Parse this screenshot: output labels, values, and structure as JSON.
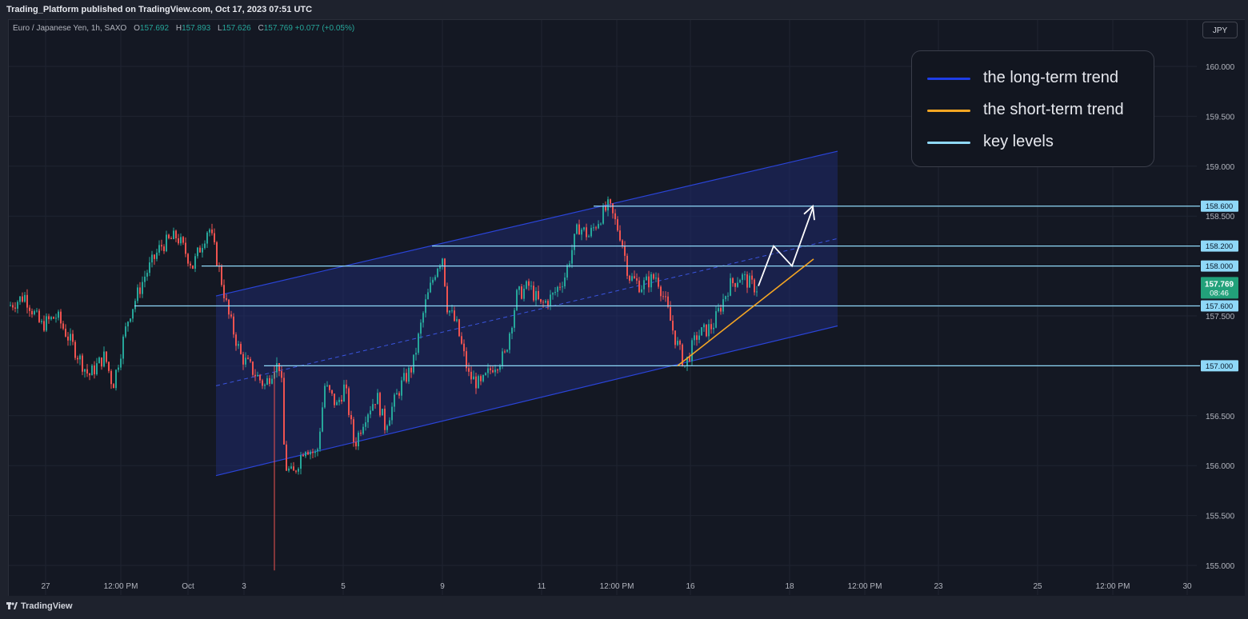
{
  "header": {
    "published": "Trading_Platform published on TradingView.com, Oct 17, 2023 07:51 UTC"
  },
  "symbol": {
    "name": "Euro / Japanese Yen, 1h, SAXO",
    "open_label": "O",
    "open": "157.692",
    "high_label": "H",
    "high": "157.893",
    "low_label": "L",
    "low": "157.626",
    "close_label": "C",
    "close": "157.769",
    "change": "+0.077 (+0.05%)"
  },
  "currency_button": "JPY",
  "legend": [
    {
      "label": "the long-term trend",
      "color": "#1e3de6"
    },
    {
      "label": "the short-term trend",
      "color": "#f5a623"
    },
    {
      "label": "key levels",
      "color": "#8fd8f8"
    }
  ],
  "footer": {
    "brand": "TradingView"
  },
  "chart_data": {
    "type": "candlestick",
    "instrument": "Euro / Japanese Yen",
    "interval": "1h",
    "ylim": [
      154.9,
      160.5
    ],
    "y_ticks": [
      "160.000",
      "159.500",
      "159.000",
      "158.500",
      "157.500",
      "157.000",
      "156.500",
      "156.000",
      "155.500",
      "155.000"
    ],
    "x_ticks": [
      "27",
      "12:00 PM",
      "Oct",
      "3",
      "5",
      "9",
      "11",
      "12:00 PM",
      "16",
      "18",
      "12:00 PM",
      "23",
      "25",
      "12:00 PM",
      "30"
    ],
    "key_levels": [
      "158.600",
      "158.200",
      "158.000",
      "157.600",
      "157.000"
    ],
    "last_price": {
      "value": "157.769",
      "countdown": "08:46"
    },
    "path": [
      [
        0,
        157.6
      ],
      [
        20,
        157.7
      ],
      [
        40,
        157.4
      ],
      [
        60,
        157.5
      ],
      [
        80,
        157.2
      ],
      [
        100,
        156.9
      ],
      [
        120,
        157.1
      ],
      [
        130,
        156.8
      ],
      [
        150,
        157.5
      ],
      [
        170,
        157.9
      ],
      [
        190,
        158.2
      ],
      [
        210,
        158.3
      ],
      [
        230,
        158.0
      ],
      [
        250,
        158.4
      ],
      [
        262,
        158.0
      ],
      [
        275,
        157.5
      ],
      [
        290,
        157.1
      ],
      [
        300,
        157.0
      ],
      [
        320,
        156.8
      ],
      [
        332,
        157.0
      ],
      [
        340,
        157.0
      ],
      [
        345,
        156.0
      ],
      [
        355,
        155.9
      ],
      [
        370,
        156.2
      ],
      [
        385,
        156.1
      ],
      [
        395,
        156.8
      ],
      [
        410,
        156.6
      ],
      [
        420,
        156.8
      ],
      [
        432,
        156.2
      ],
      [
        445,
        156.5
      ],
      [
        460,
        156.7
      ],
      [
        470,
        156.4
      ],
      [
        490,
        156.8
      ],
      [
        505,
        157.0
      ],
      [
        520,
        157.6
      ],
      [
        535,
        158.0
      ],
      [
        542,
        158.1
      ],
      [
        548,
        157.6
      ],
      [
        560,
        157.4
      ],
      [
        575,
        156.9
      ],
      [
        590,
        156.8
      ],
      [
        605,
        157.0
      ],
      [
        620,
        157.1
      ],
      [
        635,
        157.7
      ],
      [
        650,
        157.8
      ],
      [
        665,
        157.6
      ],
      [
        680,
        157.7
      ],
      [
        695,
        157.9
      ],
      [
        712,
        158.4
      ],
      [
        725,
        158.3
      ],
      [
        740,
        158.5
      ],
      [
        750,
        158.6
      ],
      [
        765,
        158.3
      ],
      [
        775,
        157.9
      ],
      [
        790,
        157.8
      ],
      [
        810,
        157.9
      ],
      [
        822,
        157.6
      ],
      [
        832,
        157.3
      ],
      [
        845,
        157.0
      ],
      [
        860,
        157.3
      ],
      [
        880,
        157.4
      ],
      [
        900,
        157.8
      ],
      [
        915,
        157.9
      ],
      [
        930,
        157.8
      ],
      [
        945,
        157.75
      ]
    ]
  }
}
